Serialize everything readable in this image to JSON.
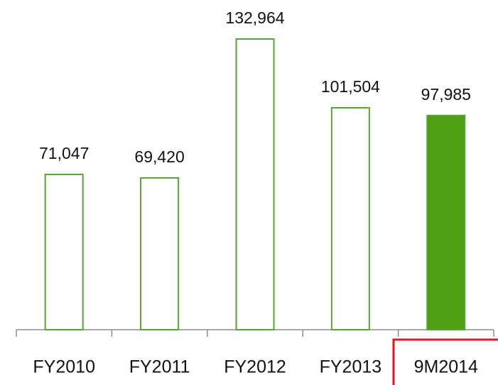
{
  "chart_data": {
    "type": "bar",
    "categories": [
      "FY2010",
      "FY2011",
      "FY2012",
      "FY2013",
      "9M2014"
    ],
    "values": [
      71047,
      69420,
      132964,
      101504,
      97985
    ],
    "value_labels": [
      "71,047",
      "69,420",
      "132,964",
      "101,504",
      "97,985"
    ],
    "edge_color": "#55a82f",
    "bar_fills": [
      "#ffffff",
      "#ffffff",
      "#ffffff",
      "#ffffff",
      "#4e9f12"
    ]
  }
}
